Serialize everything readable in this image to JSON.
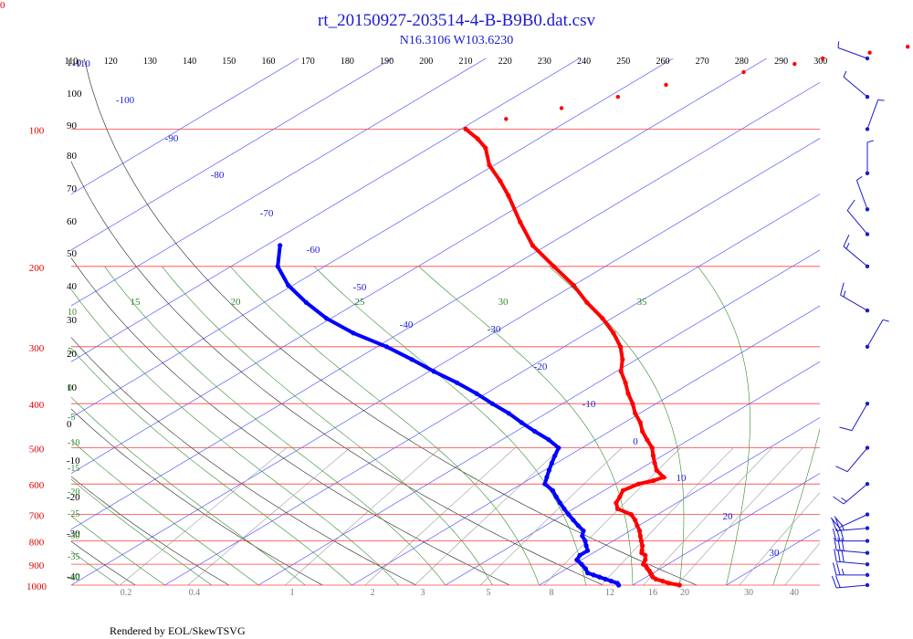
{
  "page": {
    "corner_label": "0",
    "footer": "Rendered by EOL/SkewTSVG"
  },
  "chart_data": {
    "type": "line",
    "chart_kind": "skew-t log-p",
    "title": "rt_20150927-203514-4-B-B9B0.dat.csv",
    "subtitle": "N16.3106 W103.6230",
    "pressure_range_hpa": [
      1000,
      100
    ],
    "temperature_range_at_bottom_c": [
      -40,
      40
    ],
    "isobars": [
      100,
      200,
      300,
      400,
      500,
      600,
      700,
      800,
      900,
      1000
    ],
    "isotherms": [
      -110,
      -100,
      -90,
      -80,
      -70,
      -60,
      -50,
      -40,
      -30,
      -20,
      -10,
      0,
      10,
      20,
      30
    ],
    "dry_adiabats_k": [
      110,
      120,
      130,
      140,
      150,
      160,
      170,
      180,
      190,
      200,
      210,
      220,
      230,
      240,
      250,
      260,
      270,
      280,
      290,
      300
    ],
    "left_theta_labels": [
      "110",
      "100",
      "90",
      "80",
      "70",
      "60",
      "50",
      "40",
      "30",
      "20",
      "10",
      "0",
      "-10",
      "-20",
      "-30",
      "-40"
    ],
    "moist_adiabat_labels": [
      "15",
      "20",
      "25",
      "30",
      "35"
    ],
    "left_moist_labels": [
      "10",
      "5",
      "0",
      "-5",
      "-10",
      "-15",
      "-20",
      "-25",
      "-30",
      "-35",
      "-40"
    ],
    "mixing_ratio_labels": [
      "0.2",
      "0.4",
      "1",
      "2",
      "3",
      "5",
      "8",
      "12",
      "16",
      "20",
      "30",
      "40"
    ],
    "series": [
      {
        "name": "Temperature",
        "color": "#ff0000",
        "points": [
          [
            1000,
            25.0
          ],
          [
            990,
            23.5
          ],
          [
            980,
            22.5
          ],
          [
            970,
            21.4
          ],
          [
            960,
            20.7
          ],
          [
            950,
            20.2
          ],
          [
            940,
            19.7
          ],
          [
            930,
            19.2
          ],
          [
            920,
            18.6
          ],
          [
            910,
            18.1
          ],
          [
            900,
            17.4
          ],
          [
            880,
            16.8
          ],
          [
            860,
            16.0
          ],
          [
            850,
            15.2
          ],
          [
            840,
            14.8
          ],
          [
            820,
            14.0
          ],
          [
            800,
            13.0
          ],
          [
            780,
            12.0
          ],
          [
            760,
            11.0
          ],
          [
            740,
            9.8
          ],
          [
            720,
            8.6
          ],
          [
            700,
            7.2
          ],
          [
            680,
            4.7
          ],
          [
            660,
            3.5
          ],
          [
            640,
            2.8
          ],
          [
            620,
            2.0
          ],
          [
            600,
            2.5
          ],
          [
            590,
            3.5
          ],
          [
            580,
            4.0
          ],
          [
            560,
            2.0
          ],
          [
            540,
            0.5
          ],
          [
            520,
            -1.0
          ],
          [
            500,
            -2.5
          ],
          [
            480,
            -4.5
          ],
          [
            460,
            -6.5
          ],
          [
            440,
            -8.3
          ],
          [
            420,
            -10.5
          ],
          [
            400,
            -12.5
          ],
          [
            380,
            -14.8
          ],
          [
            360,
            -17.0
          ],
          [
            340,
            -19.5
          ],
          [
            320,
            -21.5
          ],
          [
            300,
            -24.0
          ],
          [
            280,
            -27.2
          ],
          [
            260,
            -31.0
          ],
          [
            240,
            -35.5
          ],
          [
            220,
            -40.0
          ],
          [
            200,
            -45.5
          ],
          [
            180,
            -51.5
          ],
          [
            160,
            -57.0
          ],
          [
            140,
            -63.0
          ],
          [
            130,
            -66.5
          ],
          [
            120,
            -70.5
          ],
          [
            110,
            -74.0
          ],
          [
            105,
            -76.5
          ],
          [
            100,
            -79.5
          ]
        ]
      },
      {
        "name": "Dew Point",
        "color": "#0000ff",
        "points": [
          [
            1000,
            18.5
          ],
          [
            990,
            18.0
          ],
          [
            980,
            17.0
          ],
          [
            970,
            16.0
          ],
          [
            960,
            15.0
          ],
          [
            950,
            14.0
          ],
          [
            940,
            13.0
          ],
          [
            920,
            12.0
          ],
          [
            900,
            10.8
          ],
          [
            880,
            9.5
          ],
          [
            860,
            9.0
          ],
          [
            840,
            9.0
          ],
          [
            820,
            8.0
          ],
          [
            800,
            7.0
          ],
          [
            780,
            5.8
          ],
          [
            760,
            5.0
          ],
          [
            740,
            3.5
          ],
          [
            720,
            2.0
          ],
          [
            700,
            0.5
          ],
          [
            680,
            -1.0
          ],
          [
            660,
            -2.5
          ],
          [
            640,
            -4.0
          ],
          [
            620,
            -5.5
          ],
          [
            600,
            -7.5
          ],
          [
            580,
            -8.5
          ],
          [
            560,
            -9.5
          ],
          [
            540,
            -10.5
          ],
          [
            520,
            -11.5
          ],
          [
            500,
            -12.5
          ],
          [
            480,
            -15.0
          ],
          [
            460,
            -18.0
          ],
          [
            440,
            -21.0
          ],
          [
            420,
            -24.0
          ],
          [
            400,
            -27.5
          ],
          [
            380,
            -31.0
          ],
          [
            360,
            -35.0
          ],
          [
            340,
            -39.5
          ],
          [
            320,
            -44.0
          ],
          [
            300,
            -49.0
          ],
          [
            280,
            -55.0
          ],
          [
            260,
            -60.5
          ],
          [
            240,
            -65.5
          ],
          [
            220,
            -70.5
          ],
          [
            200,
            -75.0
          ],
          [
            180,
            -78.5
          ]
        ]
      },
      {
        "name": "Stratosphere Temperature",
        "color": "#ff0000",
        "points": [
          [
            100,
            -79.5
          ],
          [
            95,
            -77.0
          ],
          [
            90,
            -73.0
          ],
          [
            85,
            -69.0
          ],
          [
            80,
            -66.0
          ],
          [
            75,
            -60.0
          ],
          [
            72,
            -56.0
          ],
          [
            70,
            -54.0
          ],
          [
            68,
            -50.0
          ],
          [
            66,
            -47.0
          ],
          [
            65,
            -44.5
          ]
        ]
      }
    ],
    "wind_barbs": [
      {
        "pressure": 1000,
        "direction": 265,
        "speed_kt": 20
      },
      {
        "pressure": 950,
        "direction": 270,
        "speed_kt": 25
      },
      {
        "pressure": 900,
        "direction": 275,
        "speed_kt": 30
      },
      {
        "pressure": 850,
        "direction": 275,
        "speed_kt": 30
      },
      {
        "pressure": 800,
        "direction": 270,
        "speed_kt": 30
      },
      {
        "pressure": 750,
        "direction": 265,
        "speed_kt": 25
      },
      {
        "pressure": 700,
        "direction": 245,
        "speed_kt": 20
      },
      {
        "pressure": 600,
        "direction": 230,
        "speed_kt": 15
      },
      {
        "pressure": 500,
        "direction": 220,
        "speed_kt": 10
      },
      {
        "pressure": 400,
        "direction": 210,
        "speed_kt": 10
      },
      {
        "pressure": 300,
        "direction": 30,
        "speed_kt": 5
      },
      {
        "pressure": 250,
        "direction": 300,
        "speed_kt": 15
      },
      {
        "pressure": 200,
        "direction": 310,
        "speed_kt": 15
      },
      {
        "pressure": 170,
        "direction": 320,
        "speed_kt": 10
      },
      {
        "pressure": 150,
        "direction": 340,
        "speed_kt": 5
      },
      {
        "pressure": 125,
        "direction": 0,
        "speed_kt": 5
      },
      {
        "pressure": 100,
        "direction": 20,
        "speed_kt": 5
      },
      {
        "pressure": 85,
        "direction": 310,
        "speed_kt": 5
      },
      {
        "pressure": 70,
        "direction": 290,
        "speed_kt": 5
      }
    ]
  }
}
